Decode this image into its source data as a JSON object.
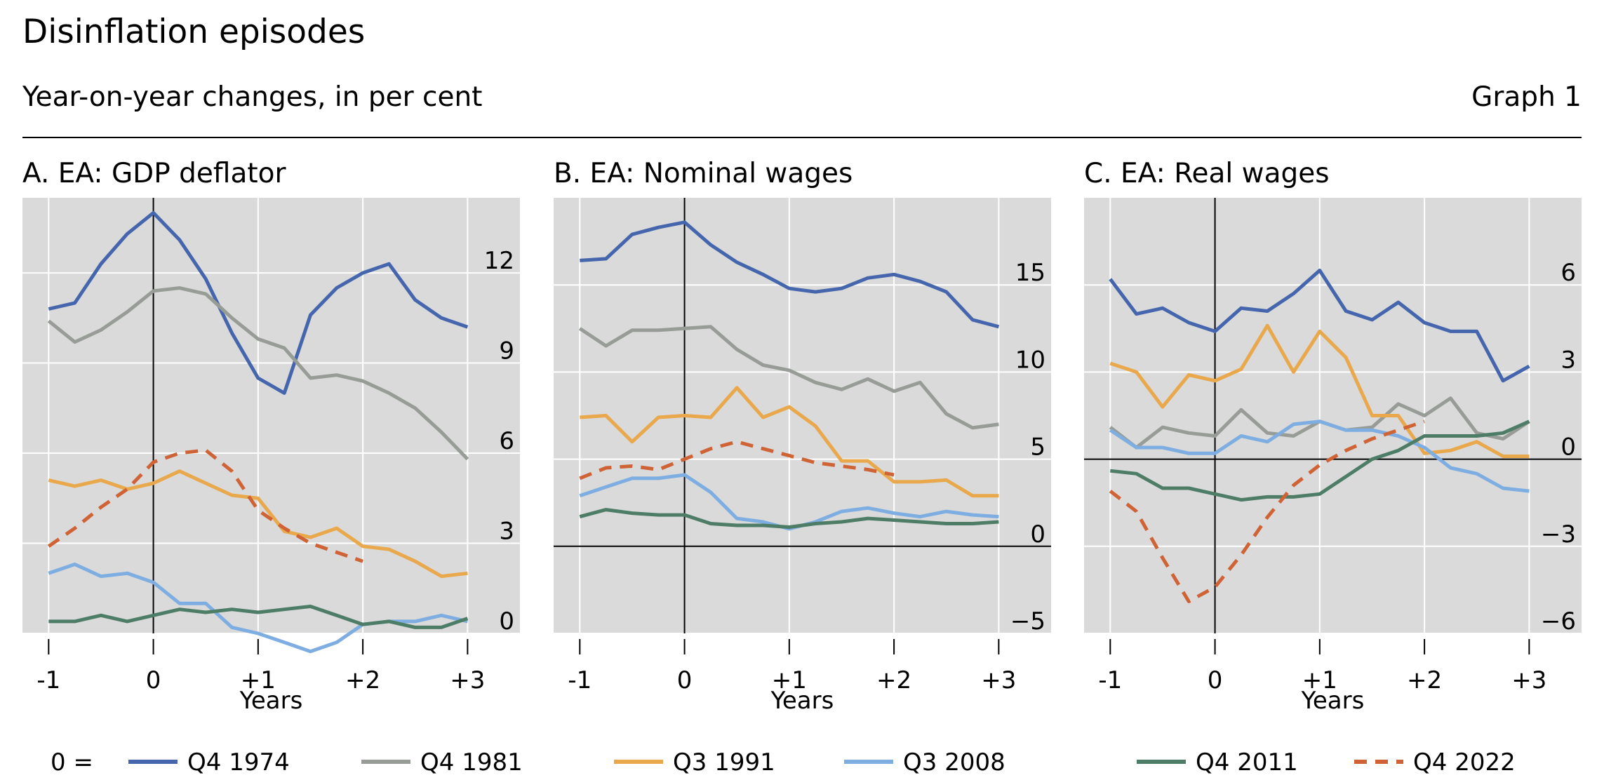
{
  "header": {
    "title": "Disinflation episodes",
    "subtitle": "Year-on-year changes, in per cent",
    "graph_label": "Graph 1"
  },
  "legend": {
    "prefix": "0 =",
    "items": [
      {
        "label": "Q4 1974",
        "color": "#4566ad",
        "dashed": false
      },
      {
        "label": "Q4 1981",
        "color": "#979c97",
        "dashed": false
      },
      {
        "label": "Q3 1991",
        "color": "#e8a84b",
        "dashed": false
      },
      {
        "label": "Q3 2008",
        "color": "#7eaee1",
        "dashed": false
      },
      {
        "label": "Q4 2011",
        "color": "#4e7d67",
        "dashed": false
      },
      {
        "label": "Q4 2022",
        "color": "#cf6336",
        "dashed": true
      }
    ]
  },
  "chart_data": [
    {
      "type": "line",
      "title": "A. EA: GDP deflator",
      "xlabel": "Years",
      "x_ticks": [
        "-1",
        "0",
        "+1",
        "+2",
        "+3"
      ],
      "x": [
        -1,
        -0.75,
        -0.5,
        -0.25,
        0,
        0.25,
        0.5,
        0.75,
        1,
        1.25,
        1.5,
        1.75,
        2,
        2.25,
        2.5,
        2.75,
        3
      ],
      "xlim": [
        -1.25,
        3.5
      ],
      "ylim": [
        0,
        14.5
      ],
      "y_ticks": [
        "0",
        "3",
        "6",
        "9",
        "12"
      ],
      "y_tick_values": [
        0,
        3,
        6,
        9,
        12
      ],
      "zero_line": false,
      "series": [
        {
          "name": "Q4 1974",
          "values": [
            10.8,
            11.0,
            12.3,
            13.3,
            14.0,
            13.1,
            11.8,
            10.0,
            8.5,
            8.0,
            10.6,
            11.5,
            12.0,
            12.3,
            11.1,
            10.5,
            10.2
          ]
        },
        {
          "name": "Q4 1981",
          "values": [
            10.4,
            9.7,
            10.1,
            10.7,
            11.4,
            11.5,
            11.3,
            10.5,
            9.8,
            9.5,
            8.5,
            8.6,
            8.4,
            8.0,
            7.5,
            6.7,
            5.8
          ]
        },
        {
          "name": "Q3 1991",
          "values": [
            5.1,
            4.9,
            5.1,
            4.8,
            5.0,
            5.4,
            5.0,
            4.6,
            4.5,
            3.4,
            3.2,
            3.5,
            2.9,
            2.8,
            2.4,
            1.9,
            2.0
          ]
        },
        {
          "name": "Q3 2008",
          "values": [
            2.0,
            2.3,
            1.9,
            2.0,
            1.7,
            1.0,
            1.0,
            0.2,
            0.0,
            -0.3,
            -0.6,
            -0.3,
            0.3,
            0.4,
            0.4,
            0.6,
            0.4
          ]
        },
        {
          "name": "Q4 2011",
          "values": [
            0.4,
            0.4,
            0.6,
            0.4,
            0.6,
            0.8,
            0.7,
            0.8,
            0.7,
            0.8,
            0.9,
            0.6,
            0.3,
            0.4,
            0.2,
            0.2,
            0.5
          ]
        },
        {
          "name": "Q4 2022",
          "values": [
            2.9,
            3.5,
            4.2,
            4.8,
            5.7,
            6.0,
            6.1,
            5.4,
            4.1,
            3.5,
            3.0,
            2.7,
            2.4,
            null,
            null,
            null,
            null
          ]
        }
      ]
    },
    {
      "type": "line",
      "title": "B. EA: Nominal wages",
      "xlabel": "Years",
      "x_ticks": [
        "-1",
        "0",
        "+1",
        "+2",
        "+3"
      ],
      "x": [
        -1,
        -0.75,
        -0.5,
        -0.25,
        0,
        0.25,
        0.5,
        0.75,
        1,
        1.25,
        1.5,
        1.75,
        2,
        2.25,
        2.5,
        2.75,
        3
      ],
      "xlim": [
        -1.25,
        3.5
      ],
      "ylim": [
        -5,
        20
      ],
      "y_ticks": [
        "−5",
        "0",
        "5",
        "10",
        "15"
      ],
      "y_tick_values": [
        -5,
        0,
        5,
        10,
        15
      ],
      "zero_line": true,
      "series": [
        {
          "name": "Q4 1974",
          "values": [
            16.4,
            16.5,
            17.9,
            18.3,
            18.6,
            17.3,
            16.3,
            15.6,
            14.8,
            14.6,
            14.8,
            15.4,
            15.6,
            15.2,
            14.6,
            13.0,
            12.6
          ]
        },
        {
          "name": "Q4 1981",
          "values": [
            12.5,
            11.5,
            12.4,
            12.4,
            12.5,
            12.6,
            11.3,
            10.4,
            10.1,
            9.4,
            9.0,
            9.6,
            8.9,
            9.4,
            7.6,
            6.8,
            7.0
          ]
        },
        {
          "name": "Q3 1991",
          "values": [
            7.4,
            7.5,
            6.0,
            7.4,
            7.5,
            7.4,
            9.1,
            7.4,
            8.0,
            6.9,
            4.9,
            4.9,
            3.7,
            3.7,
            3.8,
            2.9,
            2.9
          ]
        },
        {
          "name": "Q3 2008",
          "values": [
            2.9,
            3.4,
            3.9,
            3.9,
            4.1,
            3.1,
            1.6,
            1.4,
            1.0,
            1.4,
            2.0,
            2.2,
            1.9,
            1.7,
            2.0,
            1.8,
            1.7
          ]
        },
        {
          "name": "Q4 2011",
          "values": [
            1.7,
            2.1,
            1.9,
            1.8,
            1.8,
            1.3,
            1.2,
            1.2,
            1.1,
            1.3,
            1.4,
            1.6,
            1.5,
            1.4,
            1.3,
            1.3,
            1.4
          ]
        },
        {
          "name": "Q4 2022",
          "values": [
            3.9,
            4.5,
            4.6,
            4.4,
            5.0,
            5.6,
            6.0,
            5.6,
            5.2,
            4.8,
            4.6,
            4.4,
            4.1,
            null,
            null,
            null,
            null
          ]
        }
      ]
    },
    {
      "type": "line",
      "title": "C. EA: Real wages",
      "xlabel": "Years",
      "x_ticks": [
        "-1",
        "0",
        "+1",
        "+2",
        "+3"
      ],
      "x": [
        -1,
        -0.75,
        -0.5,
        -0.25,
        0,
        0.25,
        0.5,
        0.75,
        1,
        1.25,
        1.5,
        1.75,
        2,
        2.25,
        2.5,
        2.75,
        3
      ],
      "xlim": [
        -1.25,
        3.5
      ],
      "ylim": [
        -6,
        9
      ],
      "y_ticks": [
        "−6",
        "−3",
        "0",
        "3",
        "6"
      ],
      "y_tick_values": [
        -6,
        -3,
        0,
        3,
        6
      ],
      "zero_line": true,
      "series": [
        {
          "name": "Q4 1974",
          "values": [
            6.2,
            5.0,
            5.2,
            4.7,
            4.4,
            5.2,
            5.1,
            5.7,
            6.5,
            5.1,
            4.8,
            5.4,
            4.7,
            4.4,
            4.4,
            2.7,
            3.2
          ]
        },
        {
          "name": "Q4 1981",
          "values": [
            1.1,
            0.4,
            1.1,
            0.9,
            0.8,
            1.7,
            0.9,
            0.8,
            1.3,
            1.0,
            1.1,
            1.9,
            1.5,
            2.1,
            0.9,
            0.7,
            1.3
          ]
        },
        {
          "name": "Q3 1991",
          "values": [
            3.3,
            3.0,
            1.8,
            2.9,
            2.7,
            3.1,
            4.6,
            3.0,
            4.4,
            3.5,
            1.5,
            1.5,
            0.2,
            0.3,
            0.6,
            0.1,
            0.1
          ]
        },
        {
          "name": "Q3 2008",
          "values": [
            1.0,
            0.4,
            0.4,
            0.2,
            0.2,
            0.8,
            0.6,
            1.2,
            1.3,
            1.0,
            1.0,
            0.8,
            0.4,
            -0.3,
            -0.5,
            -1.0,
            -1.1
          ]
        },
        {
          "name": "Q4 2011",
          "values": [
            -0.4,
            -0.5,
            -1.0,
            -1.0,
            -1.2,
            -1.4,
            -1.3,
            -1.3,
            -1.2,
            -0.6,
            0.0,
            0.3,
            0.8,
            0.8,
            0.8,
            0.9,
            1.3
          ]
        },
        {
          "name": "Q4 2022",
          "values": [
            -1.1,
            -1.8,
            -3.4,
            -4.9,
            -4.4,
            -3.3,
            -2.0,
            -0.9,
            -0.2,
            0.3,
            0.7,
            1.0,
            1.3,
            null,
            null,
            null,
            null
          ]
        }
      ]
    }
  ]
}
